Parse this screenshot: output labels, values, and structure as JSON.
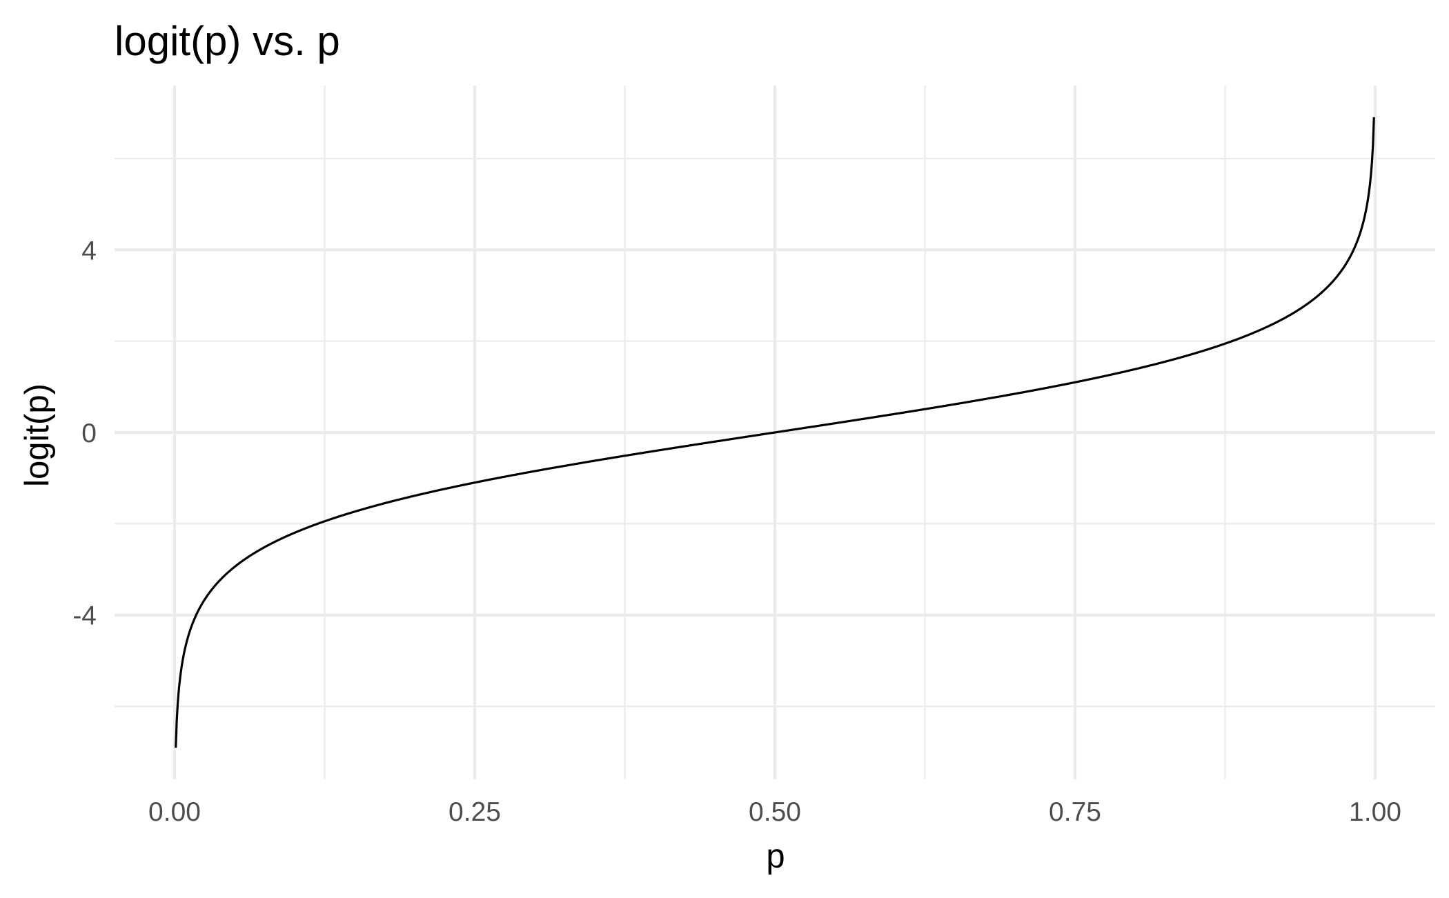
{
  "chart_data": {
    "type": "line",
    "title": "logit(p) vs. p",
    "xlabel": "p",
    "ylabel": "logit(p)",
    "function": "log(p / (1 - p))",
    "x_range": [
      0.001,
      0.999
    ],
    "xlim": [
      -0.05,
      1.05
    ],
    "ylim": [
      -7.6,
      7.6
    ],
    "x_ticks": [
      0,
      0.25,
      0.5,
      0.75,
      1
    ],
    "x_tick_labels": [
      "0.00",
      "0.25",
      "0.50",
      "0.75",
      "1.00"
    ],
    "y_ticks": [
      -4,
      0,
      4
    ],
    "y_tick_labels": [
      "-4",
      "0",
      "4"
    ],
    "x_minor_ticks": [
      0.125,
      0.375,
      0.625,
      0.875
    ],
    "y_minor_ticks": [
      -6,
      -2,
      2,
      6
    ],
    "grid": true,
    "legend": "none",
    "series": [
      {
        "color": "#000000",
        "x": [
          0.001,
          0.005,
          0.01,
          0.02,
          0.05,
          0.1,
          0.15,
          0.2,
          0.25,
          0.3,
          0.35,
          0.4,
          0.45,
          0.5,
          0.55,
          0.6,
          0.65,
          0.7,
          0.75,
          0.8,
          0.85,
          0.9,
          0.95,
          0.98,
          0.99,
          0.995,
          0.999
        ],
        "y": [
          -6.907,
          -5.293,
          -4.595,
          -3.892,
          -2.944,
          -2.197,
          -1.735,
          -1.386,
          -1.099,
          -0.847,
          -0.619,
          -0.405,
          -0.201,
          0,
          0.201,
          0.405,
          0.619,
          0.847,
          1.099,
          1.386,
          1.735,
          2.197,
          2.944,
          3.892,
          4.595,
          5.293,
          6.907
        ]
      }
    ]
  }
}
